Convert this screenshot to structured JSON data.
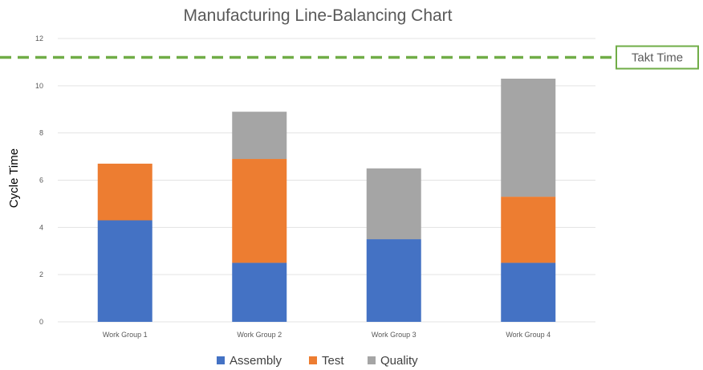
{
  "chart_data": {
    "type": "bar",
    "stacked": true,
    "title": "Manufacturing Line-Balancing Chart",
    "xlabel": "",
    "ylabel": "Cycle Time",
    "ylim": [
      0,
      12
    ],
    "yticks": [
      0,
      2,
      4,
      6,
      8,
      10,
      12
    ],
    "grid": true,
    "legend": "bottom",
    "categories": [
      "Work Group 1",
      "Work Group 2",
      "Work Group 3",
      "Work Group 4"
    ],
    "series": [
      {
        "name": "Assembly",
        "color": "#4472C4",
        "values": [
          4.3,
          2.5,
          3.5,
          2.5
        ]
      },
      {
        "name": "Test",
        "color": "#ED7D31",
        "values": [
          2.4,
          4.4,
          0,
          2.8
        ]
      },
      {
        "name": "Quality",
        "color": "#A5A5A5",
        "values": [
          0,
          2.0,
          3.0,
          5.0
        ]
      }
    ],
    "reference_line": {
      "label": "Takt Time",
      "value": 11.2,
      "color": "#70AD47",
      "style": "dashed"
    }
  }
}
